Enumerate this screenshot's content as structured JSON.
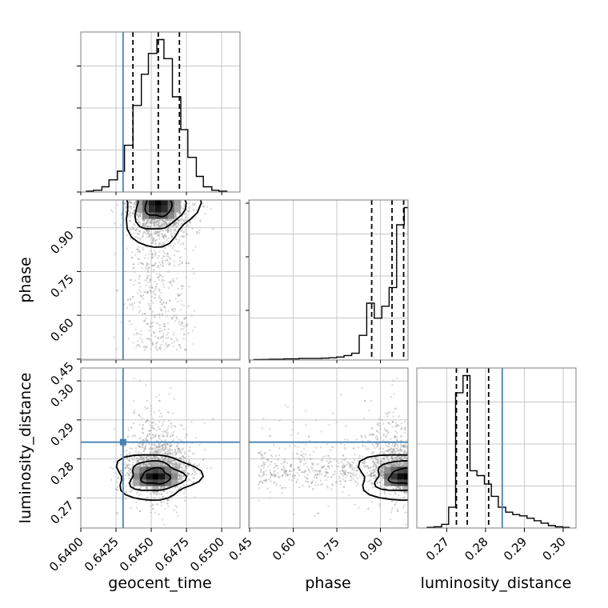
{
  "chart_data": {
    "type": "corner",
    "parameters": [
      "geocent_time",
      "phase",
      "luminosity_distance"
    ],
    "axis_labels": {
      "geocent_time": "geocent_time",
      "phase": "phase",
      "luminosity_distance": "luminosity_distance"
    },
    "ranges": {
      "geocent_time": [
        0.64,
        0.6513
      ],
      "phase": [
        0.447,
        0.995
      ],
      "luminosity_distance": [
        0.2623,
        0.3033
      ]
    },
    "ticks": {
      "geocent_time": [
        "0.6400",
        "0.6425",
        "0.6450",
        "0.6475",
        "0.6500"
      ],
      "phase": [
        "0.45",
        "0.60",
        "0.75",
        "0.90"
      ],
      "luminosity_distance": [
        "0.27",
        "0.28",
        "0.29",
        "0.30"
      ]
    },
    "truths": {
      "geocent_time": 0.643,
      "phase": null,
      "luminosity_distance": 0.2843
    },
    "quantiles": {
      "geocent_time": [
        0.6437,
        0.6455,
        0.647
      ],
      "phase": [
        0.87,
        0.94,
        0.98
      ],
      "luminosity_distance": [
        0.2725,
        0.2753,
        0.2808
      ]
    },
    "histograms": {
      "geocent_time": {
        "edges": [
          0.6404,
          0.6409,
          0.6415,
          0.642,
          0.6426,
          0.6431,
          0.6437,
          0.6443,
          0.6448,
          0.6454,
          0.6459,
          0.6465,
          0.6471,
          0.6476,
          0.6482,
          0.6487,
          0.6493,
          0.6498,
          0.6504
        ],
        "values": [
          0.5,
          1,
          3,
          7,
          12,
          27,
          50,
          68,
          80,
          88,
          77,
          55,
          36,
          20,
          9,
          3,
          1,
          0.5
        ]
      },
      "phase": {
        "edges": [
          0.465,
          0.491,
          0.517,
          0.543,
          0.568,
          0.594,
          0.62,
          0.646,
          0.672,
          0.698,
          0.723,
          0.749,
          0.775,
          0.801,
          0.827,
          0.853,
          0.879,
          0.905,
          0.93,
          0.956,
          0.982,
          0.995
        ],
        "values": [
          0.5,
          0.7,
          1,
          1,
          1.5,
          1.5,
          2,
          2,
          2,
          2.5,
          3,
          4,
          6,
          9,
          33,
          76,
          56,
          72,
          97,
          181,
          204
        ]
      },
      "luminosity_distance": {
        "edges": [
          0.265,
          0.2668,
          0.2687,
          0.2705,
          0.2723,
          0.2742,
          0.276,
          0.2778,
          0.2797,
          0.2815,
          0.2833,
          0.2852,
          0.287,
          0.2888,
          0.2907,
          0.2925,
          0.2943,
          0.2962,
          0.298,
          0.2998,
          0.3017
        ],
        "values": [
          0.5,
          1,
          3,
          17,
          111,
          125,
          47,
          43,
          36,
          26,
          17,
          13,
          11,
          10,
          8,
          6,
          4,
          2,
          1,
          0.5
        ]
      }
    },
    "grid": true,
    "colors": {
      "hist": "#000000",
      "quantile": "#000000",
      "truth": "#4682b4",
      "points": "#999999",
      "grid": "#c8c8c8",
      "axis": "#7f7f7f"
    }
  }
}
